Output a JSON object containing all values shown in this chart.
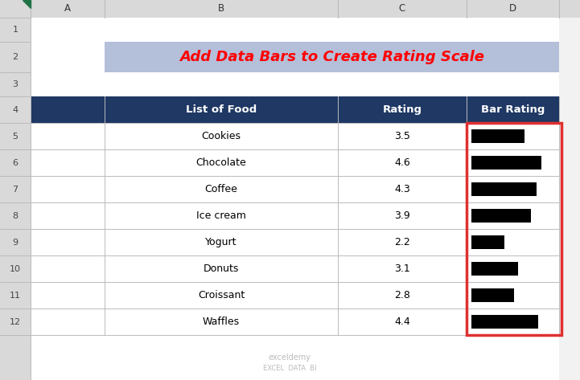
{
  "title": "Add Data Bars to Create Rating Scale",
  "title_color": "#FF0000",
  "title_bg_color": "#B4BFDA",
  "title_fontsize": 13,
  "header_bg_color": "#1F3864",
  "header_text_color": "#FFFFFF",
  "col_headers": [
    "List of Food",
    "Rating",
    "Bar Rating"
  ],
  "foods": [
    "Cookies",
    "Chocolate",
    "Coffee",
    "Ice cream",
    "Yogurt",
    "Donuts",
    "Croissant",
    "Waffles"
  ],
  "ratings": [
    3.5,
    4.6,
    4.3,
    3.9,
    2.2,
    3.1,
    2.8,
    4.4
  ],
  "bar_color": "#000000",
  "cell_bg_color": "#FFFFFF",
  "grid_color": "#BBBBBB",
  "border_color": "#E03030",
  "watermark_line1": "exceldemy",
  "watermark_line2": "EXCEL  DATA  BI",
  "fig_bg_color": "#F2F2F2",
  "rating_max": 5.0,
  "col_header_bg": "#D9D9D9",
  "row_header_bg": "#D9D9D9",
  "col_header_text": "#333333",
  "row_header_text": "#444444"
}
